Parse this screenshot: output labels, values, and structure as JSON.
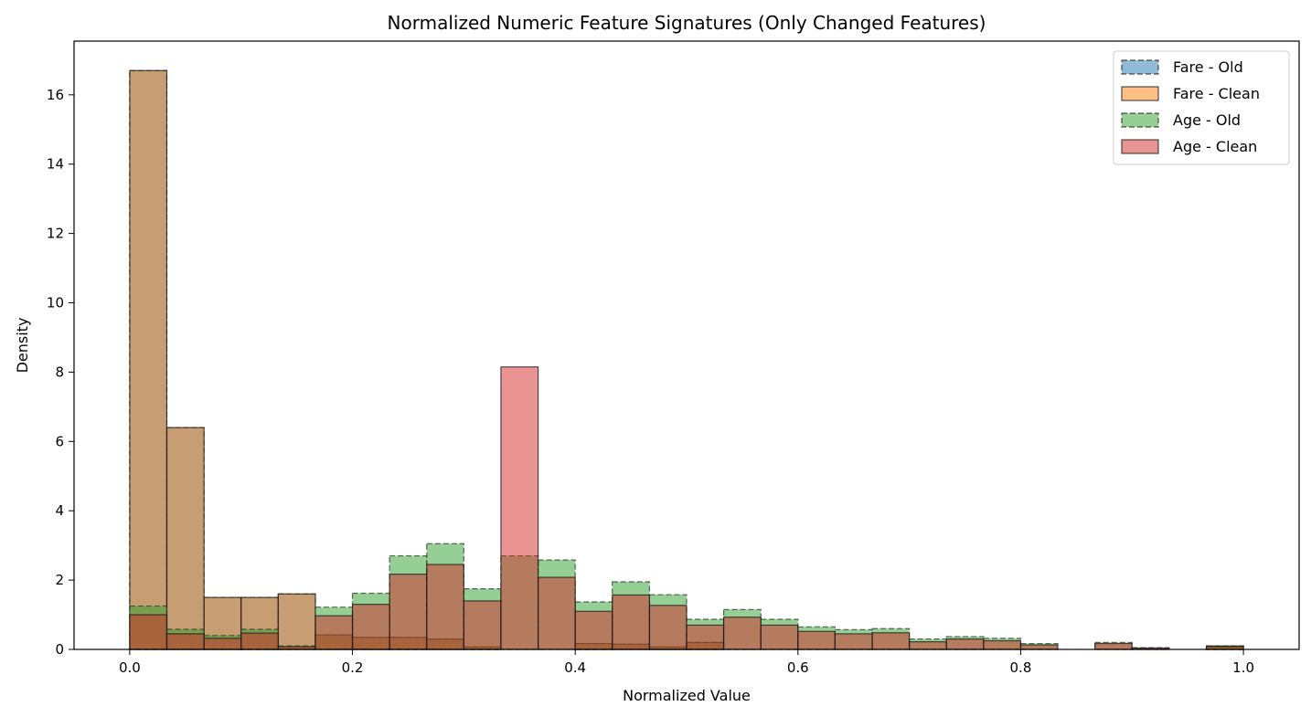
{
  "chart_data": {
    "type": "histogram",
    "title": "Normalized Numeric Feature Signatures (Only Changed Features)",
    "xlabel": "Normalized Value",
    "ylabel": "Density",
    "xlim": [
      -0.05,
      1.05
    ],
    "ylim": [
      0,
      17.55
    ],
    "xticks": [
      0.0,
      0.2,
      0.4,
      0.6,
      0.8,
      1.0
    ],
    "xtick_labels": [
      "0.0",
      "0.2",
      "0.4",
      "0.6",
      "0.8",
      "1.0"
    ],
    "yticks": [
      0,
      2,
      4,
      6,
      8,
      10,
      12,
      14,
      16
    ],
    "ytick_labels": [
      "0",
      "2",
      "4",
      "6",
      "8",
      "10",
      "12",
      "14",
      "16"
    ],
    "grid": false,
    "legend_position": "top-right",
    "bin_edges": [
      0.0,
      0.0333,
      0.0667,
      0.1,
      0.1333,
      0.1667,
      0.2,
      0.2333,
      0.2667,
      0.3,
      0.3333,
      0.3667,
      0.4,
      0.4333,
      0.4667,
      0.5,
      0.5333,
      0.5667,
      0.6,
      0.6333,
      0.6667,
      0.7,
      0.7333,
      0.7667,
      0.8,
      0.8333,
      0.8667,
      0.9,
      0.9333,
      0.9667,
      1.0
    ],
    "series": [
      {
        "name": "Fare - Old",
        "color": "#1f77b4",
        "edge_style": "dashed",
        "values": [
          16.7,
          6.4,
          1.5,
          1.5,
          1.6,
          0.42,
          0.35,
          0.35,
          0.3,
          0.07,
          0.0,
          0.0,
          0.17,
          0.15,
          0.07,
          0.2,
          0.0,
          0.0,
          0.0,
          0.0,
          0.0,
          0.0,
          0.0,
          0.0,
          0.0,
          0.0,
          0.0,
          0.0,
          0.0,
          0.1
        ]
      },
      {
        "name": "Fare - Clean",
        "color": "#ff7f0e",
        "edge_style": "solid",
        "values": [
          16.7,
          6.4,
          1.5,
          1.5,
          1.6,
          0.42,
          0.35,
          0.35,
          0.3,
          0.07,
          0.0,
          0.0,
          0.17,
          0.15,
          0.07,
          0.2,
          0.0,
          0.0,
          0.0,
          0.0,
          0.0,
          0.0,
          0.0,
          0.0,
          0.0,
          0.0,
          0.0,
          0.0,
          0.0,
          0.1
        ]
      },
      {
        "name": "Age - Old",
        "color": "#2ca02c",
        "edge_style": "dashed",
        "values": [
          1.25,
          0.58,
          0.4,
          0.58,
          0.1,
          1.22,
          1.62,
          2.7,
          3.05,
          1.75,
          2.7,
          2.58,
          1.37,
          1.95,
          1.58,
          0.87,
          1.15,
          0.87,
          0.65,
          0.57,
          0.6,
          0.3,
          0.37,
          0.32,
          0.17,
          0.0,
          0.2,
          0.05,
          0.0,
          0.1
        ]
      },
      {
        "name": "Age - Clean",
        "color": "#d62728",
        "edge_style": "solid",
        "values": [
          1.0,
          0.45,
          0.32,
          0.47,
          0.08,
          0.97,
          1.3,
          2.17,
          2.45,
          1.4,
          8.15,
          2.08,
          1.1,
          1.57,
          1.27,
          0.7,
          0.93,
          0.7,
          0.52,
          0.45,
          0.48,
          0.22,
          0.3,
          0.25,
          0.13,
          0.0,
          0.17,
          0.04,
          0.0,
          0.08
        ]
      }
    ]
  }
}
